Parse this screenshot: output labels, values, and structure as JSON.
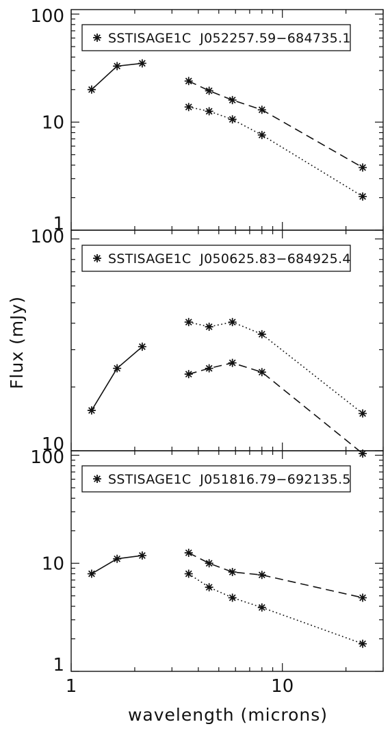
{
  "figure": {
    "ylabel": "Flux (mJy)",
    "xlabel": "wavelength (microns)",
    "x_tick_labels": [
      "1",
      "10"
    ]
  },
  "chart_data": [
    {
      "type": "line",
      "legend": "SSTISAGE1C  J052257.59−684735.1",
      "marker": "asterisk",
      "x_scale": "log",
      "y_scale": "log",
      "xlim": [
        1,
        30
      ],
      "ylim": [
        1,
        110
      ],
      "y_tick_labels": [
        "1",
        "10",
        "100"
      ],
      "series": [
        {
          "style": "solid",
          "x": [
            1.25,
            1.65,
            2.17
          ],
          "y": [
            20,
            33,
            35
          ]
        },
        {
          "style": "dashed",
          "x": [
            3.6,
            4.5,
            5.8,
            8.0,
            24.0
          ],
          "y": [
            24,
            19.5,
            16,
            13,
            3.8
          ]
        },
        {
          "style": "dotted",
          "x": [
            3.6,
            4.5,
            5.8,
            8.0,
            24.0
          ],
          "y": [
            13.8,
            12.6,
            10.6,
            7.6,
            2.05
          ]
        }
      ]
    },
    {
      "type": "line",
      "legend": "SSTISAGE1C  J050625.83−684925.4",
      "marker": "asterisk",
      "x_scale": "log",
      "y_scale": "log",
      "xlim": [
        1,
        30
      ],
      "ylim": [
        10,
        110
      ],
      "y_tick_labels": [
        "10",
        "100"
      ],
      "series": [
        {
          "style": "solid",
          "x": [
            1.25,
            1.65,
            2.17
          ],
          "y": [
            15.5,
            24.5,
            31
          ]
        },
        {
          "style": "dotted",
          "x": [
            3.6,
            4.5,
            5.8,
            8.0,
            24.0
          ],
          "y": [
            40.5,
            38.5,
            40.5,
            35.5,
            15
          ]
        },
        {
          "style": "dashed",
          "x": [
            3.6,
            4.5,
            5.8,
            8.0,
            24.0
          ],
          "y": [
            23,
            24.5,
            26,
            23.5,
            9.7
          ]
        }
      ]
    },
    {
      "type": "line",
      "legend": "SSTISAGE1C  J051816.79−692135.5",
      "marker": "asterisk",
      "x_scale": "log",
      "y_scale": "log",
      "xlim": [
        1,
        30
      ],
      "ylim": [
        1,
        110
      ],
      "y_tick_labels": [
        "1",
        "10",
        "100"
      ],
      "series": [
        {
          "style": "solid",
          "x": [
            1.25,
            1.65,
            2.17
          ],
          "y": [
            8,
            11,
            11.8
          ]
        },
        {
          "style": "dashed",
          "x": [
            3.6,
            4.5,
            5.8,
            8.0,
            24.0
          ],
          "y": [
            12.5,
            10,
            8.3,
            7.8,
            4.8
          ]
        },
        {
          "style": "dotted",
          "x": [
            3.6,
            4.5,
            5.8,
            8.0,
            24.0
          ],
          "y": [
            8,
            6,
            4.8,
            3.9,
            1.8
          ]
        }
      ]
    }
  ]
}
